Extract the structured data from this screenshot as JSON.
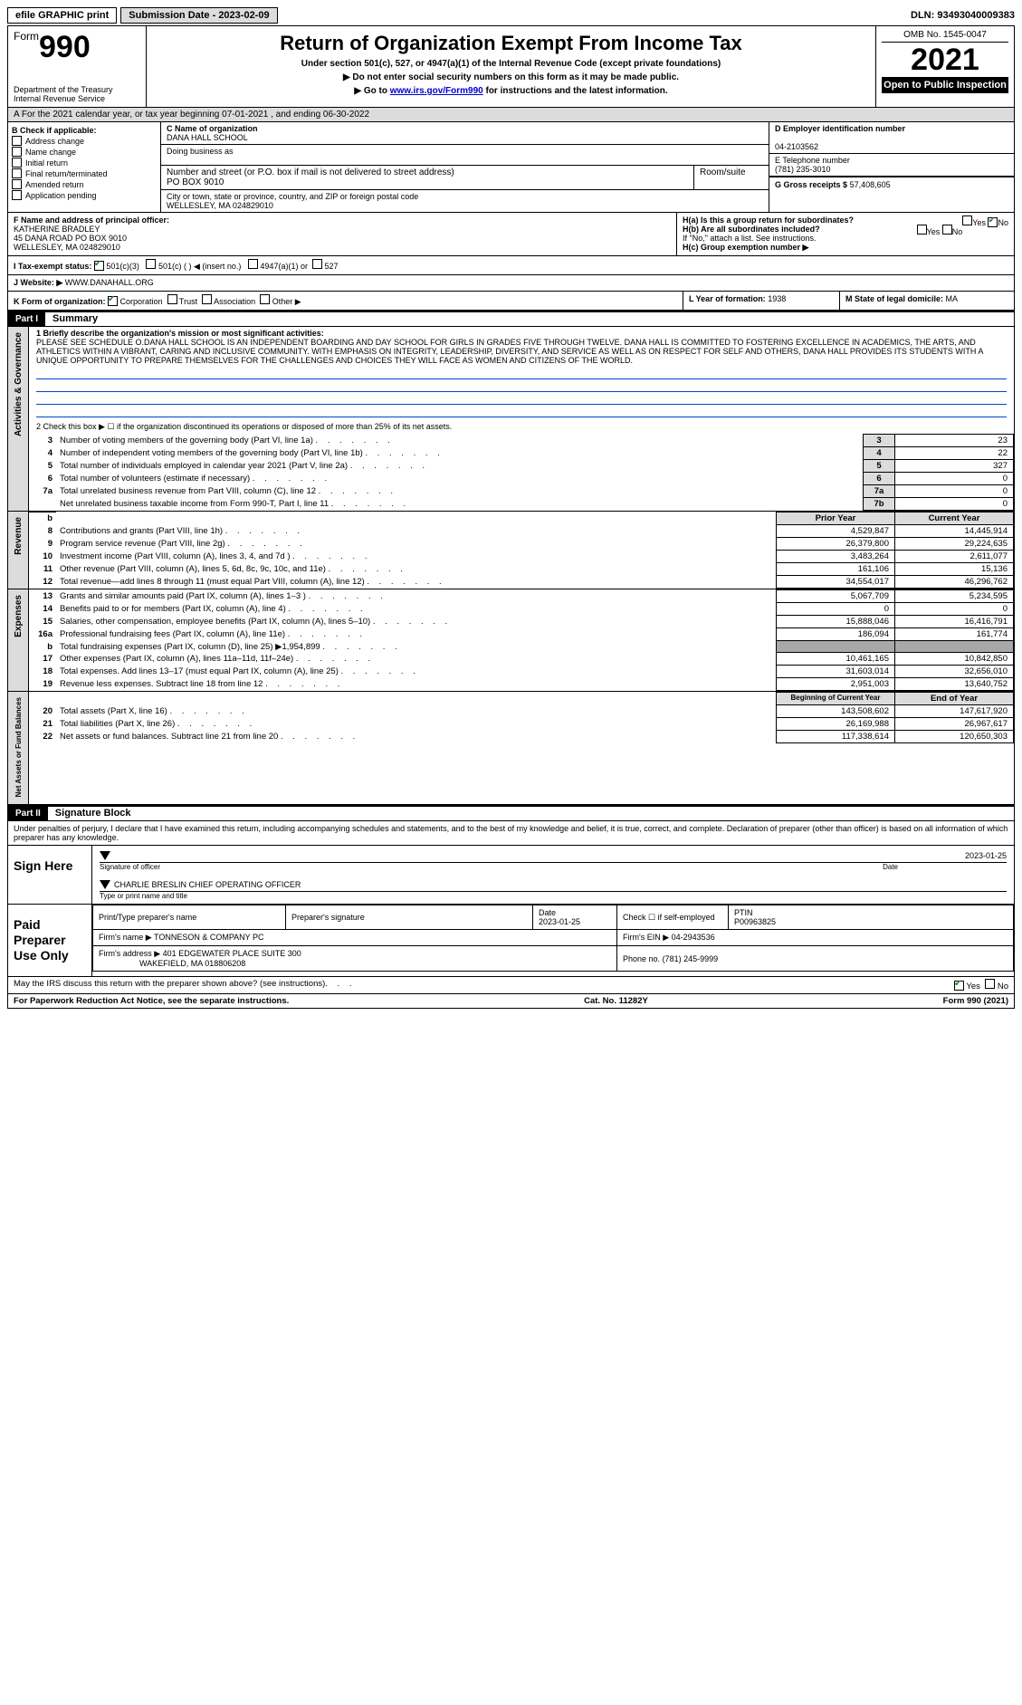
{
  "topbar": {
    "efile": "efile GRAPHIC print",
    "subdate_lbl": "Submission Date - 2023-02-09",
    "dln": "DLN: 93493040009383"
  },
  "header": {
    "form_label": "Form",
    "form_no": "990",
    "dept": "Department of the Treasury",
    "irs": "Internal Revenue Service",
    "title": "Return of Organization Exempt From Income Tax",
    "sub1": "Under section 501(c), 527, or 4947(a)(1) of the Internal Revenue Code (except private foundations)",
    "sub2": "▶ Do not enter social security numbers on this form as it may be made public.",
    "sub3_pre": "▶ Go to ",
    "sub3_link": "www.irs.gov/Form990",
    "sub3_post": " for instructions and the latest information.",
    "omb": "OMB No. 1545-0047",
    "year": "2021",
    "open": "Open to Public Inspection"
  },
  "taxyear": "A For the 2021 calendar year, or tax year beginning 07-01-2021  , and ending 06-30-2022",
  "boxB": {
    "hdr": "B Check if applicable:",
    "items": [
      "Address change",
      "Name change",
      "Initial return",
      "Final return/terminated",
      "Amended return",
      "Application pending"
    ]
  },
  "boxC": {
    "lbl": "C Name of organization",
    "name": "DANA HALL SCHOOL",
    "dba": "Doing business as",
    "addr_lbl": "Number and street (or P.O. box if mail is not delivered to street address)",
    "room_lbl": "Room/suite",
    "addr": "PO BOX 9010",
    "city_lbl": "City or town, state or province, country, and ZIP or foreign postal code",
    "city": "WELLESLEY, MA  024829010"
  },
  "boxD": {
    "lbl": "D Employer identification number",
    "val": "04-2103562"
  },
  "boxE": {
    "lbl": "E Telephone number",
    "val": "(781) 235-3010"
  },
  "boxG": {
    "lbl": "G Gross receipts $",
    "val": "57,408,605"
  },
  "boxF": {
    "lbl": "F  Name and address of principal officer:",
    "name": "KATHERINE BRADLEY",
    "addr1": "45 DANA ROAD PO BOX 9010",
    "addr2": "WELLESLEY, MA  024829010"
  },
  "boxH": {
    "a": "H(a)  Is this a group return for subordinates?",
    "b": "H(b)  Are all subordinates included?",
    "note": "If \"No,\" attach a list. See instructions.",
    "c": "H(c)  Group exemption number ▶",
    "yes": "Yes",
    "no": "No"
  },
  "rowI": {
    "lbl": "I   Tax-exempt status:",
    "o1": "501(c)(3)",
    "o2": "501(c) (  ) ◀ (insert no.)",
    "o3": "4947(a)(1) or",
    "o4": "527"
  },
  "rowJ": {
    "lbl": "J   Website: ▶",
    "val": "WWW.DANAHALL.ORG"
  },
  "rowK": {
    "lbl": "K Form of organization:",
    "o1": "Corporation",
    "o2": "Trust",
    "o3": "Association",
    "o4": "Other ▶"
  },
  "rowL": {
    "lbl": "L Year of formation:",
    "val": "1938"
  },
  "rowM": {
    "lbl": "M State of legal domicile:",
    "val": "MA"
  },
  "part1": {
    "tag": "Part I",
    "title": "Summary"
  },
  "mission": {
    "lead": "1   Briefly describe the organization's mission or most significant activities:",
    "body": "PLEASE SEE SCHEDULE O.DANA HALL SCHOOL IS AN INDEPENDENT BOARDING AND DAY SCHOOL FOR GIRLS IN GRADES FIVE THROUGH TWELVE. DANA HALL IS COMMITTED TO FOSTERING EXCELLENCE IN ACADEMICS, THE ARTS, AND ATHLETICS WITHIN A VIBRANT, CARING AND INCLUSIVE COMMUNITY. WITH EMPHASIS ON INTEGRITY, LEADERSHIP, DIVERSITY, AND SERVICE AS WELL AS ON RESPECT FOR SELF AND OTHERS, DANA HALL PROVIDES ITS STUDENTS WITH A UNIQUE OPPORTUNITY TO PREPARE THEMSELVES FOR THE CHALLENGES AND CHOICES THEY WILL FACE AS WOMEN AND CITIZENS OF THE WORLD."
  },
  "gov": {
    "l2": "2   Check this box ▶ ☐ if the organization discontinued its operations or disposed of more than 25% of its net assets.",
    "rows": [
      {
        "n": "3",
        "d": "Number of voting members of the governing body (Part VI, line 1a)",
        "b": "3",
        "v": "23"
      },
      {
        "n": "4",
        "d": "Number of independent voting members of the governing body (Part VI, line 1b)",
        "b": "4",
        "v": "22"
      },
      {
        "n": "5",
        "d": "Total number of individuals employed in calendar year 2021 (Part V, line 2a)",
        "b": "5",
        "v": "327"
      },
      {
        "n": "6",
        "d": "Total number of volunteers (estimate if necessary)",
        "b": "6",
        "v": "0"
      },
      {
        "n": "7a",
        "d": "Total unrelated business revenue from Part VIII, column (C), line 12",
        "b": "7a",
        "v": "0"
      },
      {
        "n": "",
        "d": "Net unrelated business taxable income from Form 990-T, Part I, line 11",
        "b": "7b",
        "v": "0"
      }
    ],
    "tab": "Activities & Governance"
  },
  "rev": {
    "hdr_prior": "Prior Year",
    "hdr_cur": "Current Year",
    "rows": [
      {
        "n": "8",
        "d": "Contributions and grants (Part VIII, line 1h)",
        "p": "4,529,847",
        "c": "14,445,914"
      },
      {
        "n": "9",
        "d": "Program service revenue (Part VIII, line 2g)",
        "p": "26,379,800",
        "c": "29,224,635"
      },
      {
        "n": "10",
        "d": "Investment income (Part VIII, column (A), lines 3, 4, and 7d )",
        "p": "3,483,264",
        "c": "2,611,077"
      },
      {
        "n": "11",
        "d": "Other revenue (Part VIII, column (A), lines 5, 6d, 8c, 9c, 10c, and 11e)",
        "p": "161,106",
        "c": "15,136"
      },
      {
        "n": "12",
        "d": "Total revenue—add lines 8 through 11 (must equal Part VIII, column (A), line 12)",
        "p": "34,554,017",
        "c": "46,296,762"
      }
    ],
    "tab": "Revenue"
  },
  "exp": {
    "rows": [
      {
        "n": "13",
        "d": "Grants and similar amounts paid (Part IX, column (A), lines 1–3 )",
        "p": "5,067,709",
        "c": "5,234,595"
      },
      {
        "n": "14",
        "d": "Benefits paid to or for members (Part IX, column (A), line 4)",
        "p": "0",
        "c": "0"
      },
      {
        "n": "15",
        "d": "Salaries, other compensation, employee benefits (Part IX, column (A), lines 5–10)",
        "p": "15,888,046",
        "c": "16,416,791"
      },
      {
        "n": "16a",
        "d": "Professional fundraising fees (Part IX, column (A), line 11e)",
        "p": "186,094",
        "c": "161,774"
      },
      {
        "n": "b",
        "d": "Total fundraising expenses (Part IX, column (D), line 25) ▶1,954,899",
        "p": "",
        "c": ""
      },
      {
        "n": "17",
        "d": "Other expenses (Part IX, column (A), lines 11a–11d, 11f–24e)",
        "p": "10,461,165",
        "c": "10,842,850"
      },
      {
        "n": "18",
        "d": "Total expenses. Add lines 13–17 (must equal Part IX, column (A), line 25)",
        "p": "31,603,014",
        "c": "32,656,010"
      },
      {
        "n": "19",
        "d": "Revenue less expenses. Subtract line 18 from line 12",
        "p": "2,951,003",
        "c": "13,640,752"
      }
    ],
    "tab": "Expenses"
  },
  "net": {
    "hdr_beg": "Beginning of Current Year",
    "hdr_end": "End of Year",
    "rows": [
      {
        "n": "20",
        "d": "Total assets (Part X, line 16)",
        "p": "143,508,602",
        "c": "147,617,920"
      },
      {
        "n": "21",
        "d": "Total liabilities (Part X, line 26)",
        "p": "26,169,988",
        "c": "26,967,617"
      },
      {
        "n": "22",
        "d": "Net assets or fund balances. Subtract line 21 from line 20",
        "p": "117,338,614",
        "c": "120,650,303"
      }
    ],
    "tab": "Net Assets or Fund Balances"
  },
  "part2": {
    "tag": "Part II",
    "title": "Signature Block"
  },
  "perjury": "Under penalties of perjury, I declare that I have examined this return, including accompanying schedules and statements, and to the best of my knowledge and belief, it is true, correct, and complete. Declaration of preparer (other than officer) is based on all information of which preparer has any knowledge.",
  "sign": {
    "here": "Sign Here",
    "sig_of": "Signature of officer",
    "date_lbl": "Date",
    "date": "2023-01-25",
    "name": "CHARLIE BRESLIN  CHIEF OPERATING OFFICER",
    "name_lbl": "Type or print name and title"
  },
  "paid": {
    "lab": "Paid Preparer Use Only",
    "h1": "Print/Type preparer's name",
    "h2": "Preparer's signature",
    "h3": "Date",
    "h3v": "2023-01-25",
    "h4": "Check ☐ if self-employed",
    "h5": "PTIN",
    "h5v": "P00963825",
    "firm_lbl": "Firm's name    ▶",
    "firm": "TONNESON & COMPANY PC",
    "ein_lbl": "Firm's EIN ▶",
    "ein": "04-2943536",
    "addr_lbl": "Firm's address ▶",
    "addr1": "401 EDGEWATER PLACE SUITE 300",
    "addr2": "WAKEFIELD, MA  018806208",
    "phone_lbl": "Phone no.",
    "phone": "(781) 245-9999"
  },
  "discuss": {
    "q": "May the IRS discuss this return with the preparer shown above? (see instructions)",
    "yes": "Yes",
    "no": "No"
  },
  "foot": {
    "l": "For Paperwork Reduction Act Notice, see the separate instructions.",
    "m": "Cat. No. 11282Y",
    "r": "Form 990 (2021)"
  }
}
